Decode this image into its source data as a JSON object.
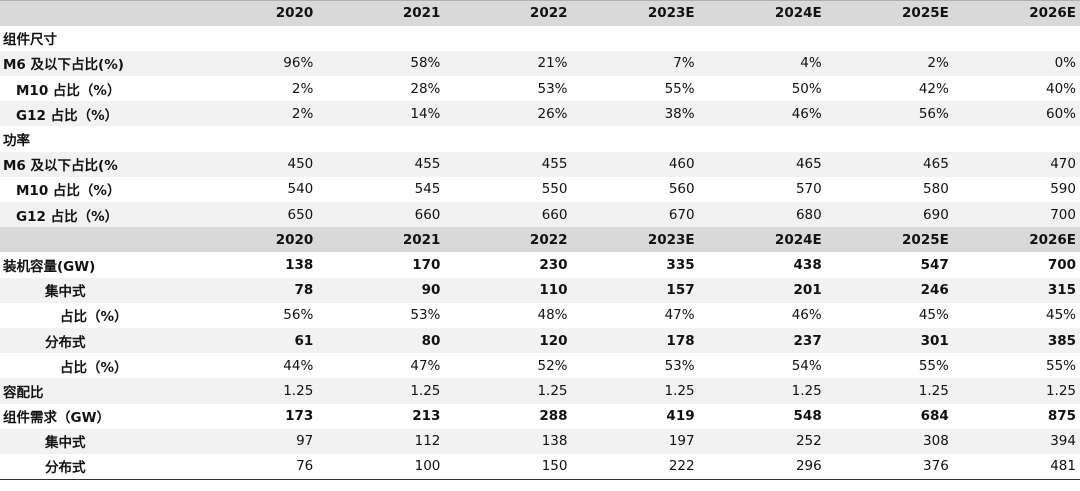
{
  "headers": [
    "2020",
    "2021",
    "2022",
    "2023E",
    "2024E",
    "2025E",
    "2026E"
  ],
  "rows": [
    {
      "label": "组件尺寸",
      "values": [
        "",
        "",
        "",
        "",
        "",
        "",
        ""
      ]
    },
    {
      "label": "M6 及以下占比(%)",
      "values": [
        "96%",
        "58%",
        "21%",
        "7%",
        "4%",
        "2%",
        "0%"
      ]
    },
    {
      "label": "M10 占比（%）",
      "values": [
        "2%",
        "28%",
        "53%",
        "55%",
        "50%",
        "42%",
        "40%"
      ]
    },
    {
      "label": "G12 占比（%）",
      "values": [
        "2%",
        "14%",
        "26%",
        "38%",
        "46%",
        "56%",
        "60%"
      ]
    },
    {
      "label": "功率",
      "values": [
        "",
        "",
        "",
        "",
        "",
        "",
        ""
      ]
    },
    {
      "label": "M6 及以下占比(%",
      "values": [
        "450",
        "455",
        "455",
        "460",
        "465",
        "465",
        "470"
      ]
    },
    {
      "label": "M10 占比（%）",
      "values": [
        "540",
        "545",
        "550",
        "560",
        "570",
        "580",
        "590"
      ]
    },
    {
      "label": "G12 占比（%）",
      "values": [
        "650",
        "660",
        "660",
        "670",
        "680",
        "690",
        "700"
      ]
    },
    {
      "label": "",
      "values": [
        "2020",
        "2021",
        "2022",
        "2023E",
        "2024E",
        "2025E",
        "2026E"
      ]
    },
    {
      "label": "装机容量(GW)",
      "values": [
        "138",
        "170",
        "230",
        "335",
        "438",
        "547",
        "700"
      ]
    },
    {
      "label": "集中式",
      "values": [
        "78",
        "90",
        "110",
        "157",
        "201",
        "246",
        "315"
      ]
    },
    {
      "label": "占比（%）",
      "values": [
        "56%",
        "53%",
        "48%",
        "47%",
        "46%",
        "45%",
        "45%"
      ]
    },
    {
      "label": "分布式",
      "values": [
        "61",
        "80",
        "120",
        "178",
        "237",
        "301",
        "385"
      ]
    },
    {
      "label": "占比（%）",
      "values": [
        "44%",
        "47%",
        "52%",
        "53%",
        "54%",
        "55%",
        "55%"
      ]
    },
    {
      "label": "容配比",
      "values": [
        "1.25",
        "1.25",
        "1.25",
        "1.25",
        "1.25",
        "1.25",
        "1.25"
      ]
    },
    {
      "label": "组件需求（GW）",
      "values": [
        "173",
        "213",
        "288",
        "419",
        "548",
        "684",
        "875"
      ]
    },
    {
      "label": "集中式",
      "values": [
        "97",
        "112",
        "138",
        "197",
        "252",
        "308",
        "394"
      ]
    },
    {
      "label": "分布式",
      "values": [
        "76",
        "100",
        "150",
        "222",
        "296",
        "376",
        "481"
      ]
    }
  ]
}
